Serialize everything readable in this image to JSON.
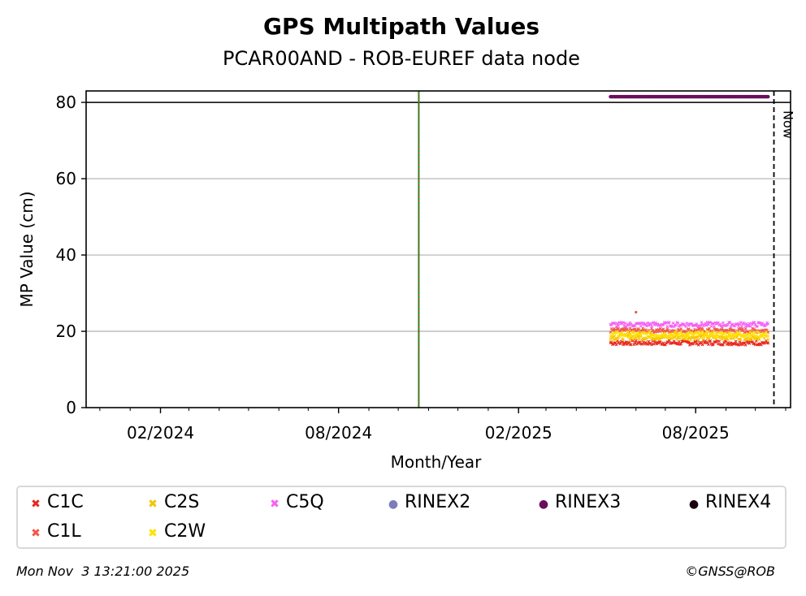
{
  "header": {
    "title": "GPS Multipath Values",
    "subtitle": "PCAR00AND - ROB-EUREF data node"
  },
  "footer": {
    "timestamp": "Mon Nov  3 13:21:00 2025",
    "copyright": "©GNSS@ROB"
  },
  "colors": {
    "C1C": "#e8281e",
    "C1L": "#f2564a",
    "C2S": "#f5c400",
    "C2W": "#ffe100",
    "C5Q": "#f560f5",
    "RINEX2": "#7b7bbd",
    "RINEX3": "#6a0f5a",
    "RINEX4": "#1a0010",
    "event_line": "#1e8c1e",
    "event_line_dash": "#d62728"
  },
  "chart_data": {
    "type": "scatter",
    "title": "GPS Multipath Values",
    "subtitle": "PCAR00AND - ROB-EUREF data node",
    "xlabel": "Month/Year",
    "ylabel": "MP Value (cm)",
    "ylim": [
      0,
      83
    ],
    "xlim": [
      "2023-12-01",
      "2025-11-20"
    ],
    "x_ticks": [
      "02/2024",
      "08/2024",
      "02/2025",
      "08/2025"
    ],
    "y_ticks": [
      "0",
      "20",
      "40",
      "60",
      "80"
    ],
    "grid": "horizontal",
    "legend_position": "bottom",
    "now_label": "Now",
    "now_date": "2025-11-03",
    "event_line_date": "2024-11-05",
    "reference_line_y": 80,
    "series": [
      {
        "name": "C1C",
        "marker": "x",
        "x_start": "2025-05-20",
        "x_end": "2025-10-28",
        "value": 17.0,
        "spread": 0.6
      },
      {
        "name": "C1L",
        "marker": "x",
        "x_start": "2025-05-20",
        "x_end": "2025-10-28",
        "value": 20.2,
        "spread": 0.6,
        "outlier": {
          "date": "2025-06-15",
          "value": 25.0
        }
      },
      {
        "name": "C2S",
        "marker": "x",
        "x_start": "2025-05-20",
        "x_end": "2025-10-28",
        "value": 18.5,
        "spread": 0.7
      },
      {
        "name": "C2W",
        "marker": "x",
        "x_start": "2025-05-20",
        "x_end": "2025-10-28",
        "value": 19.2,
        "spread": 0.7
      },
      {
        "name": "C5Q",
        "marker": "x",
        "x_start": "2025-05-20",
        "x_end": "2025-10-28",
        "value": 21.8,
        "spread": 0.6
      },
      {
        "name": "RINEX2",
        "marker": "dot",
        "x_start": null,
        "x_end": null,
        "value": null
      },
      {
        "name": "RINEX3",
        "marker": "dot",
        "x_start": "2025-05-20",
        "x_end": "2025-10-28",
        "value": 81.5,
        "spread": 0
      },
      {
        "name": "RINEX4",
        "marker": "dot",
        "x_start": null,
        "x_end": null,
        "value": null
      }
    ]
  },
  "legend": {
    "items": [
      {
        "label": "C1C",
        "marker": "✖"
      },
      {
        "label": "C2S",
        "marker": "✖"
      },
      {
        "label": "C5Q",
        "marker": "✖"
      },
      {
        "label": "RINEX2",
        "marker": "●"
      },
      {
        "label": "RINEX3",
        "marker": "●"
      },
      {
        "label": "RINEX4",
        "marker": "●"
      },
      {
        "label": "C1L",
        "marker": "✖"
      },
      {
        "label": "C2W",
        "marker": "✖"
      }
    ]
  }
}
